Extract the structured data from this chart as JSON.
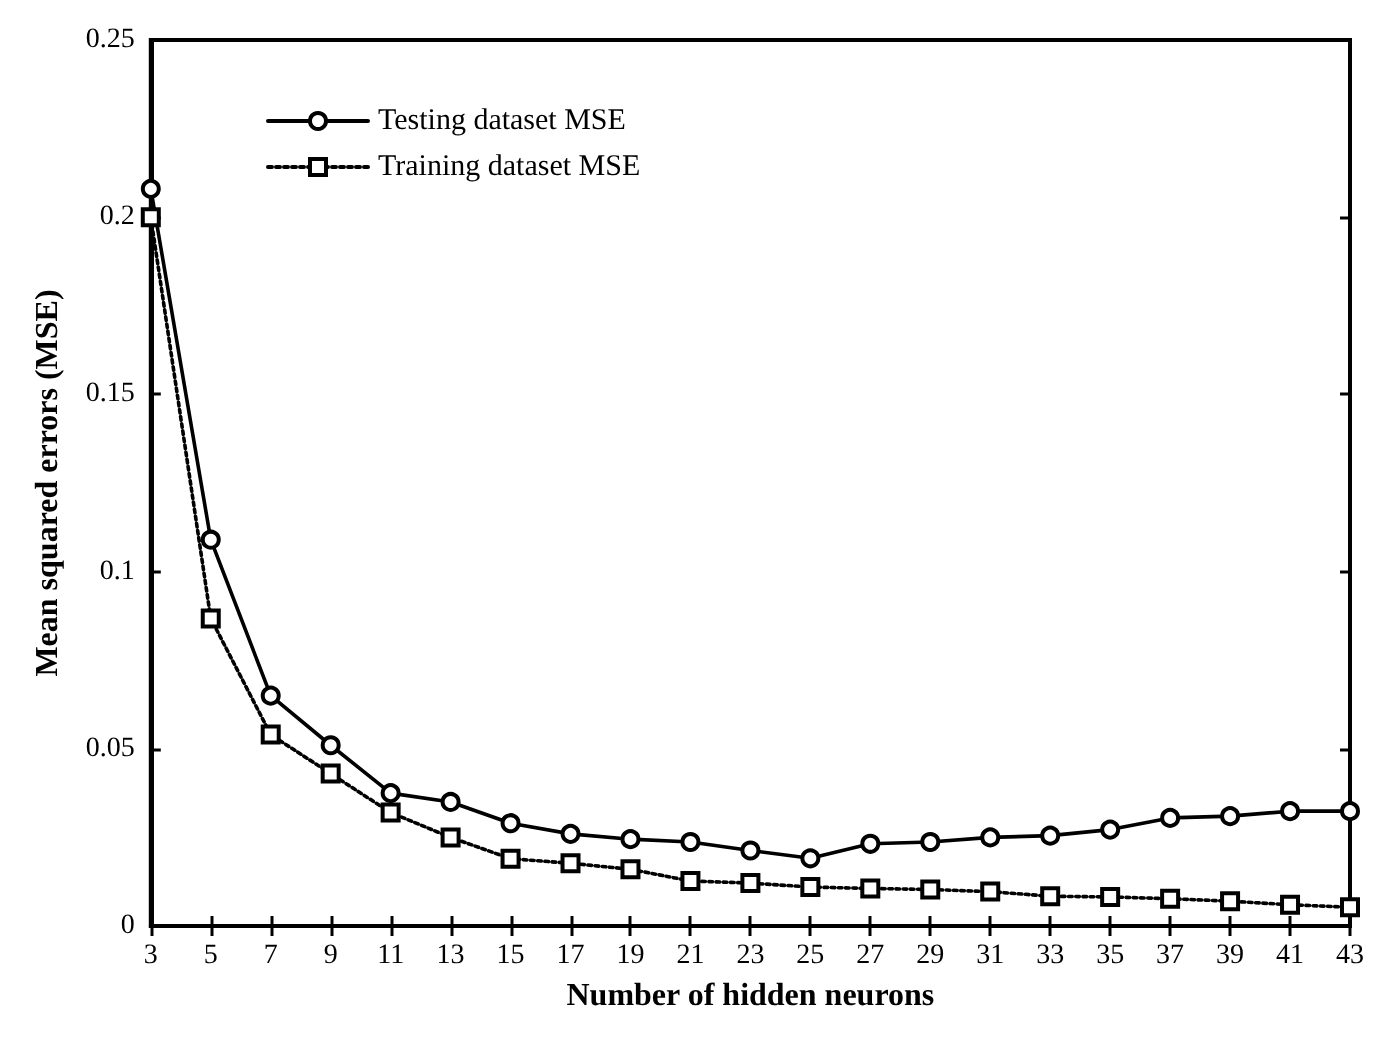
{
  "chart_data": {
    "type": "line",
    "xlabel": "Number of hidden neurons",
    "ylabel": "Mean squared errors (MSE)",
    "x": [
      3,
      5,
      7,
      9,
      11,
      13,
      15,
      17,
      19,
      21,
      23,
      25,
      27,
      29,
      31,
      33,
      35,
      37,
      39,
      41,
      43
    ],
    "xlim": [
      3,
      43
    ],
    "xticks": [
      3,
      5,
      7,
      9,
      11,
      13,
      15,
      17,
      19,
      21,
      23,
      25,
      27,
      29,
      31,
      33,
      35,
      37,
      39,
      41,
      43
    ],
    "ylim": [
      0,
      0.25
    ],
    "yticks": [
      0,
      0.05,
      0.1,
      0.15,
      0.2,
      0.25
    ],
    "grid": false,
    "legend": "top left",
    "series": [
      {
        "name": "Testing dataset MSE",
        "color": "#000000",
        "marker": "circle",
        "line_style": "solid",
        "values": [
          0.208,
          0.109,
          0.065,
          0.051,
          0.0375,
          0.035,
          0.029,
          0.026,
          0.0245,
          0.0237,
          0.0213,
          0.0191,
          0.0232,
          0.0237,
          0.025,
          0.0255,
          0.0272,
          0.0305,
          0.031,
          0.0324,
          0.0324
        ]
      },
      {
        "name": "Training dataset MSE",
        "color": "#000000",
        "marker": "square",
        "line_style": "dotted",
        "values": [
          0.2,
          0.0868,
          0.054,
          0.043,
          0.032,
          0.025,
          0.019,
          0.0177,
          0.016,
          0.0127,
          0.0121,
          0.011,
          0.0106,
          0.0103,
          0.0097,
          0.0084,
          0.0082,
          0.0077,
          0.007,
          0.006,
          0.0053
        ]
      }
    ]
  }
}
